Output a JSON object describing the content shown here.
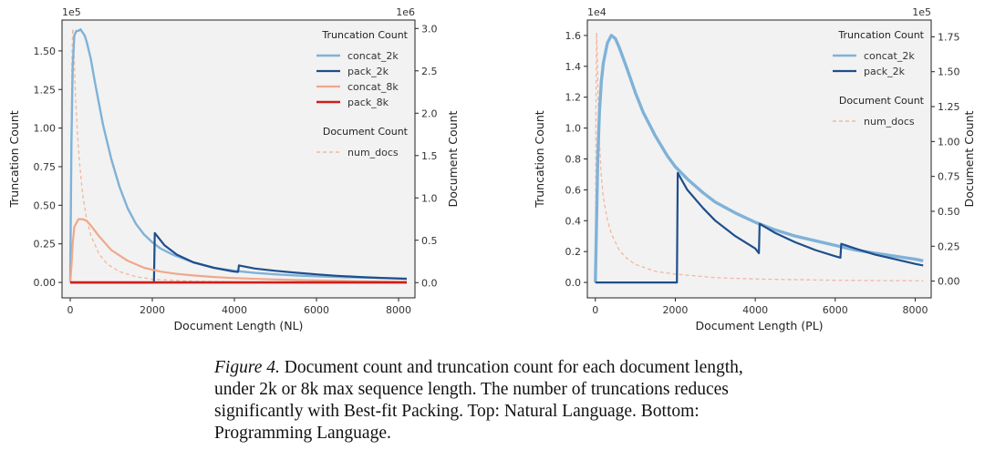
{
  "caption": {
    "label": "Figure 4.",
    "text": "Document count and truncation count for each document length, under 2k or 8k max sequence length. The number of truncations reduces significantly with Best-fit Packing. Top: Natural Language. Bottom: Programming Language."
  },
  "chart_data": [
    {
      "type": "line",
      "xlabel": "Document Length (NL)",
      "ylabel": "Truncation Count",
      "y2label": "Document Count",
      "ylim": [
        -0.1,
        1.7
      ],
      "y_multiplier": "1e5",
      "y2lim": [
        -0.18,
        3.1
      ],
      "y2_multiplier": "1e6",
      "xlim": [
        -200,
        8400
      ],
      "xticks": [
        "0",
        "2000",
        "4000",
        "6000",
        "8000"
      ],
      "yticks": [
        "0.00",
        "0.25",
        "0.50",
        "0.75",
        "1.00",
        "1.25",
        "1.50"
      ],
      "y2ticks": [
        "0.0",
        "0.5",
        "1.0",
        "1.5",
        "2.0",
        "2.5",
        "3.0"
      ],
      "legend": {
        "position": "upper-right",
        "truncation_title": "Truncation Count",
        "document_title": "Document Count",
        "entries": [
          "concat_2k",
          "pack_2k",
          "concat_8k",
          "pack_8k"
        ],
        "doc_entries": [
          "num_docs"
        ]
      },
      "series": [
        {
          "name": "concat_2k",
          "axis": "left",
          "color": "#7fb2d8",
          "width": 2.4,
          "x": [
            0,
            30,
            60,
            100,
            150,
            200,
            250,
            300,
            350,
            400,
            500,
            600,
            800,
            1000,
            1200,
            1400,
            1600,
            1800,
            2000,
            2200,
            2500,
            3000,
            3500,
            4000,
            4500,
            5000,
            5500,
            6000,
            6500,
            7000,
            7500,
            8000,
            8200
          ],
          "y": [
            0,
            0.9,
            1.4,
            1.6,
            1.63,
            1.63,
            1.64,
            1.62,
            1.6,
            1.56,
            1.45,
            1.3,
            1.02,
            0.8,
            0.62,
            0.48,
            0.38,
            0.31,
            0.26,
            0.22,
            0.18,
            0.13,
            0.095,
            0.075,
            0.062,
            0.052,
            0.045,
            0.04,
            0.035,
            0.032,
            0.029,
            0.026,
            0.025
          ]
        },
        {
          "name": "pack_2k",
          "axis": "left",
          "color": "#1f4e8c",
          "width": 2.2,
          "x": [
            0,
            1000,
            2040,
            2060,
            2300,
            2600,
            3000,
            3500,
            4000,
            4090,
            4110,
            4500,
            5000,
            5500,
            6000,
            6500,
            7000,
            7500,
            8000,
            8200
          ],
          "y": [
            0,
            0,
            0,
            0.32,
            0.24,
            0.18,
            0.13,
            0.095,
            0.07,
            0.068,
            0.11,
            0.09,
            0.075,
            0.063,
            0.052,
            0.043,
            0.036,
            0.03,
            0.025,
            0.023
          ]
        },
        {
          "name": "concat_8k",
          "axis": "left",
          "color": "#f0a888",
          "width": 2.2,
          "x": [
            0,
            30,
            60,
            100,
            200,
            300,
            400,
            500,
            700,
            1000,
            1400,
            1800,
            2200,
            2600,
            3000,
            3500,
            4000,
            5000,
            6000,
            7000,
            8000,
            8200
          ],
          "y": [
            0,
            0.1,
            0.25,
            0.36,
            0.41,
            0.41,
            0.4,
            0.37,
            0.3,
            0.21,
            0.14,
            0.095,
            0.07,
            0.055,
            0.045,
            0.035,
            0.028,
            0.019,
            0.013,
            0.008,
            0.004,
            0.003
          ]
        },
        {
          "name": "pack_8k",
          "axis": "left",
          "color": "#cc1f1a",
          "width": 2.6,
          "x": [
            0,
            8200
          ],
          "y": [
            0,
            0
          ]
        },
        {
          "name": "num_docs",
          "axis": "right",
          "color": "#f2b79e",
          "width": 1.3,
          "dashed": true,
          "x": [
            0,
            20,
            40,
            60,
            80,
            100,
            130,
            170,
            220,
            300,
            400,
            500,
            700,
            900,
            1200,
            1600,
            2000,
            3000,
            4000,
            6000,
            8200
          ],
          "y": [
            0,
            1.5,
            2.6,
            3.0,
            2.9,
            2.6,
            2.2,
            1.8,
            1.45,
            1.05,
            0.75,
            0.56,
            0.34,
            0.22,
            0.13,
            0.07,
            0.04,
            0.017,
            0.008,
            0.003,
            0.001
          ]
        }
      ]
    },
    {
      "type": "line",
      "xlabel": "Document Length (PL)",
      "ylabel": "Truncation Count",
      "y2label": "Document Count",
      "ylim": [
        -0.1,
        1.7
      ],
      "y_multiplier": "1e4",
      "y2lim": [
        -0.12,
        1.87
      ],
      "y2_multiplier": "1e5",
      "xlim": [
        -200,
        8400
      ],
      "xticks": [
        "0",
        "2000",
        "4000",
        "6000",
        "8000"
      ],
      "yticks": [
        "0.0",
        "0.2",
        "0.4",
        "0.6",
        "0.8",
        "1.0",
        "1.2",
        "1.4",
        "1.6"
      ],
      "y2ticks": [
        "0.00",
        "0.25",
        "0.50",
        "0.75",
        "1.00",
        "1.25",
        "1.50",
        "1.75"
      ],
      "legend": {
        "position": "upper-right",
        "truncation_title": "Truncation Count",
        "document_title": "Document Count",
        "entries": [
          "concat_2k",
          "pack_2k"
        ],
        "doc_entries": [
          "num_docs"
        ]
      },
      "series": [
        {
          "name": "concat_2k",
          "axis": "left",
          "color": "#7fb2d8",
          "width": 3.4,
          "x": [
            0,
            60,
            100,
            150,
            200,
            300,
            400,
            500,
            600,
            800,
            1000,
            1200,
            1500,
            1800,
            2000,
            2300,
            2700,
            3000,
            3500,
            4000,
            4500,
            5000,
            5500,
            6000,
            6500,
            7000,
            7500,
            8000,
            8200
          ],
          "y": [
            0,
            0.8,
            1.1,
            1.3,
            1.42,
            1.55,
            1.6,
            1.58,
            1.52,
            1.38,
            1.23,
            1.1,
            0.95,
            0.82,
            0.75,
            0.67,
            0.58,
            0.52,
            0.45,
            0.39,
            0.34,
            0.3,
            0.27,
            0.24,
            0.21,
            0.19,
            0.17,
            0.15,
            0.14
          ]
        },
        {
          "name": "pack_2k",
          "axis": "left",
          "color": "#1f4e8c",
          "width": 2.2,
          "x": [
            0,
            1000,
            2040,
            2060,
            2300,
            2700,
            3000,
            3500,
            4000,
            4090,
            4110,
            4500,
            5000,
            5500,
            6000,
            6130,
            6150,
            6500,
            7000,
            7500,
            8000,
            8200
          ],
          "y": [
            0,
            0,
            0,
            0.71,
            0.6,
            0.48,
            0.4,
            0.3,
            0.22,
            0.19,
            0.38,
            0.32,
            0.26,
            0.21,
            0.17,
            0.16,
            0.25,
            0.22,
            0.18,
            0.15,
            0.12,
            0.11
          ]
        },
        {
          "name": "num_docs",
          "axis": "right",
          "color": "#f2b79e",
          "width": 1.3,
          "dashed": true,
          "x": [
            0,
            15,
            30,
            50,
            70,
            100,
            150,
            200,
            300,
            400,
            600,
            800,
            1000,
            1500,
            2000,
            3000,
            4000,
            6000,
            8200
          ],
          "y": [
            0,
            1.2,
            1.78,
            1.6,
            1.3,
            1.0,
            0.75,
            0.6,
            0.44,
            0.34,
            0.22,
            0.16,
            0.12,
            0.07,
            0.05,
            0.025,
            0.015,
            0.006,
            0.002
          ]
        }
      ]
    }
  ]
}
